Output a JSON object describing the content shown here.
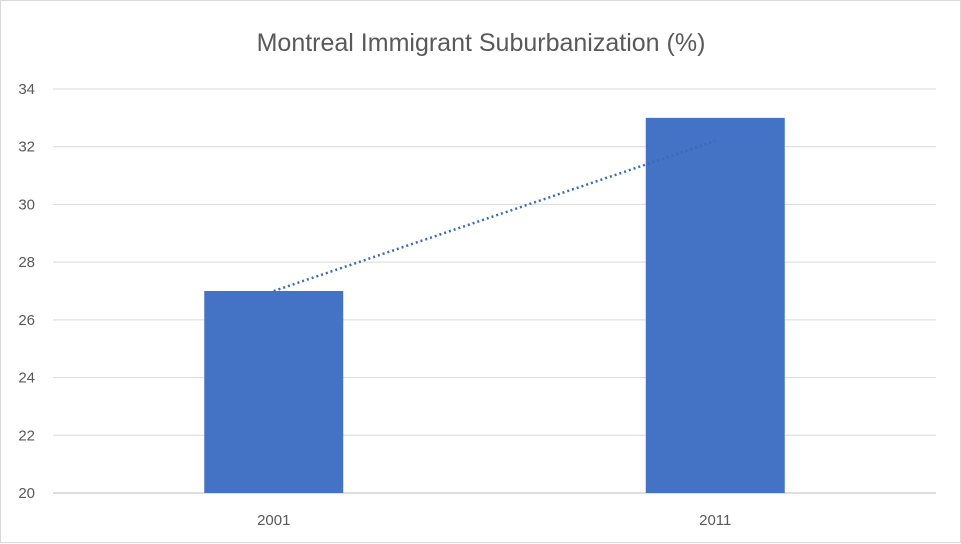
{
  "chart_data": {
    "type": "bar",
    "title": "Montreal Immigrant Suburbanization (%)",
    "categories": [
      "2001",
      "2011"
    ],
    "series": [
      {
        "values": [
          27,
          33
        ],
        "color": "#4472c4"
      }
    ],
    "trendline": {
      "style": "dotted",
      "color": "#3a6cb5",
      "values": [
        27,
        32.2
      ]
    },
    "xlabel": "",
    "ylabel": "",
    "ylim": [
      20,
      34
    ],
    "yticks": [
      20,
      22,
      24,
      26,
      28,
      30,
      32,
      34
    ],
    "grid": true,
    "legend": "none"
  }
}
